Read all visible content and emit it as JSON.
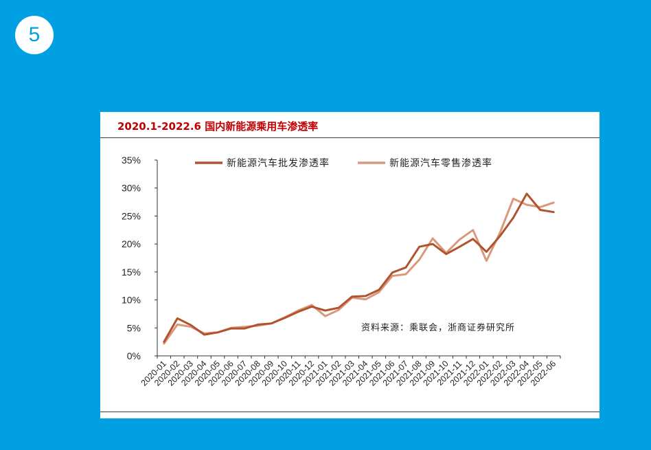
{
  "slide": {
    "number": "5"
  },
  "source_note": "资料来源：乘联会，浙商证券研究所",
  "colors": {
    "background": "#00a0e3",
    "title": "#c00000",
    "series1": "#b0532f",
    "series2": "#d9987a"
  },
  "chart_data": {
    "type": "line",
    "title": "2020.1-2022.6 国内新能源乘用车渗透率",
    "xlabel": "",
    "ylabel": "",
    "ylim": [
      0,
      35
    ],
    "yticks": [
      "0%",
      "5%",
      "10%",
      "15%",
      "20%",
      "25%",
      "30%",
      "35%"
    ],
    "legend_position": "top",
    "grid": false,
    "x": [
      "2020-01",
      "2020-02",
      "2020-03",
      "2020-04",
      "2020-05",
      "2020-06",
      "2020-07",
      "2020-08",
      "2020-09",
      "2020-10",
      "2020-11",
      "2020-12",
      "2021-01",
      "2021-02",
      "2021-03",
      "2021-04",
      "2021-05",
      "2021-06",
      "2021-07",
      "2021-08",
      "2021-09",
      "2021-10",
      "2021-11",
      "2021-12",
      "2022-01",
      "2022-02",
      "2022-03",
      "2022-04",
      "2022-05",
      "2022-06"
    ],
    "series": [
      {
        "name": "新能源汽车批发渗透率",
        "color": "#b0532f",
        "values": [
          2.5,
          6.7,
          5.5,
          3.8,
          4.2,
          4.9,
          4.9,
          5.6,
          5.8,
          6.8,
          7.9,
          8.8,
          8.1,
          8.6,
          10.6,
          10.7,
          11.8,
          14.9,
          15.8,
          19.5,
          20.0,
          18.2,
          19.5,
          20.9,
          18.6,
          21.4,
          24.7,
          29.0,
          26.1,
          25.7
        ]
      },
      {
        "name": "新能源汽车零售渗透率",
        "color": "#d9987a",
        "values": [
          2.2,
          5.6,
          5.2,
          4.0,
          4.2,
          5.0,
          5.2,
          5.4,
          5.8,
          6.9,
          8.1,
          9.1,
          7.1,
          8.2,
          10.4,
          10.1,
          11.4,
          14.3,
          14.6,
          17.2,
          21.0,
          18.4,
          20.8,
          22.5,
          17.0,
          22.0,
          28.1,
          27.0,
          26.6,
          27.4
        ]
      }
    ]
  }
}
